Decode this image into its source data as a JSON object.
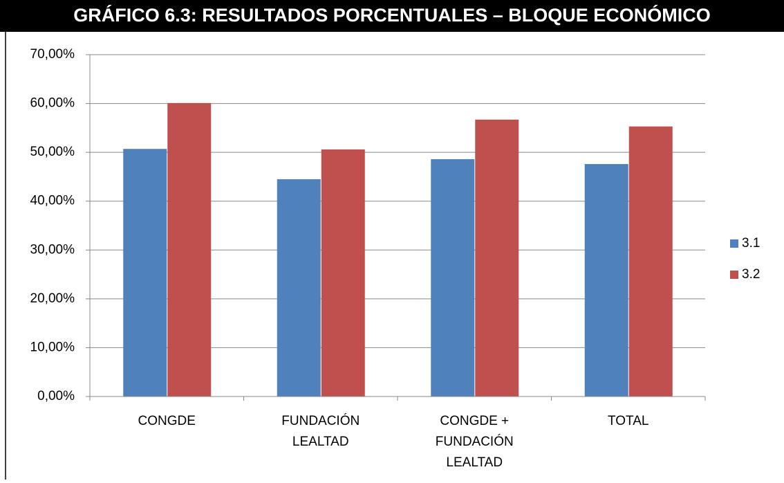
{
  "chart_data": {
    "type": "bar",
    "title": "GRÁFICO 6.3: RESULTADOS PORCENTUALES – BLOQUE ECONÓMICO",
    "categories": [
      [
        "CONGDE"
      ],
      [
        "FUNDACIÓN",
        "LEALTAD"
      ],
      [
        "CONGDE +",
        "FUNDACIÓN",
        "LEALTAD"
      ],
      [
        "TOTAL"
      ]
    ],
    "series": [
      {
        "name": "3.1",
        "color": "#4f81bd",
        "values": [
          50.7,
          44.5,
          48.6,
          47.6
        ]
      },
      {
        "name": "3.2",
        "color": "#c0504d",
        "values": [
          60.1,
          50.6,
          56.7,
          55.3
        ]
      }
    ],
    "ylim": [
      0,
      70
    ],
    "yticks": [
      {
        "value": 0,
        "label": "0,00%"
      },
      {
        "value": 10,
        "label": "10,00%"
      },
      {
        "value": 20,
        "label": "20,00%"
      },
      {
        "value": 30,
        "label": "30,00%"
      },
      {
        "value": 40,
        "label": "40,00%"
      },
      {
        "value": 50,
        "label": "50,00%"
      },
      {
        "value": 60,
        "label": "60,00%"
      },
      {
        "value": 70,
        "label": "70,00%"
      }
    ],
    "grid": true,
    "legend": "right"
  }
}
